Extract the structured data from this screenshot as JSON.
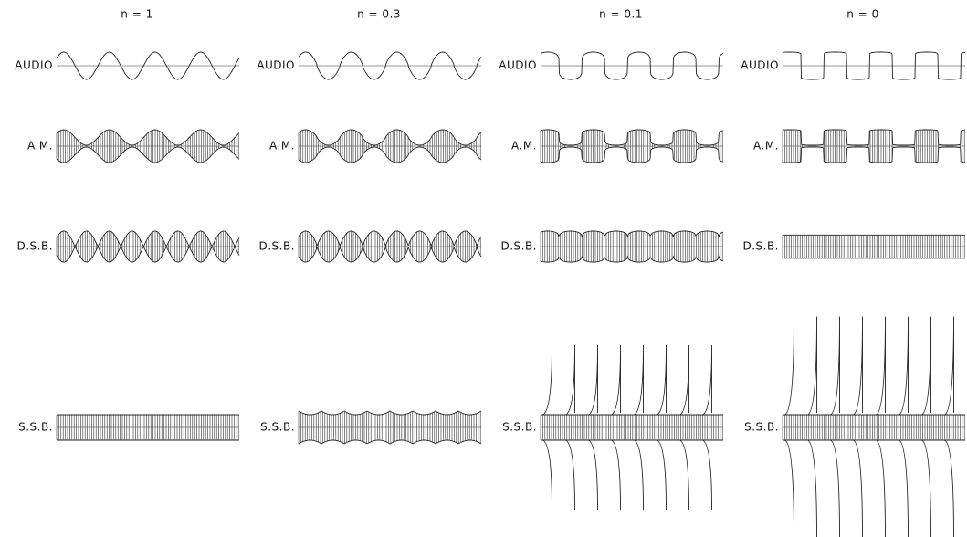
{
  "columns": [
    {
      "header": "n = 1",
      "rows": [
        "AUDIO",
        "A.M.",
        "D.S.B.",
        "S.S.B."
      ]
    },
    {
      "header": "n = 0.3",
      "rows": [
        "AUDIO",
        "A.M.",
        "D.S.B.",
        "S.S.B."
      ]
    },
    {
      "header": "n = 0.1",
      "rows": [
        "AUDIO",
        "A.M.",
        "D.S.B.",
        "S.S.B."
      ]
    },
    {
      "header": "n = 0",
      "rows": [
        "AUDIO",
        "A.M.",
        "D.S.B.",
        "S.S.B."
      ]
    }
  ]
}
